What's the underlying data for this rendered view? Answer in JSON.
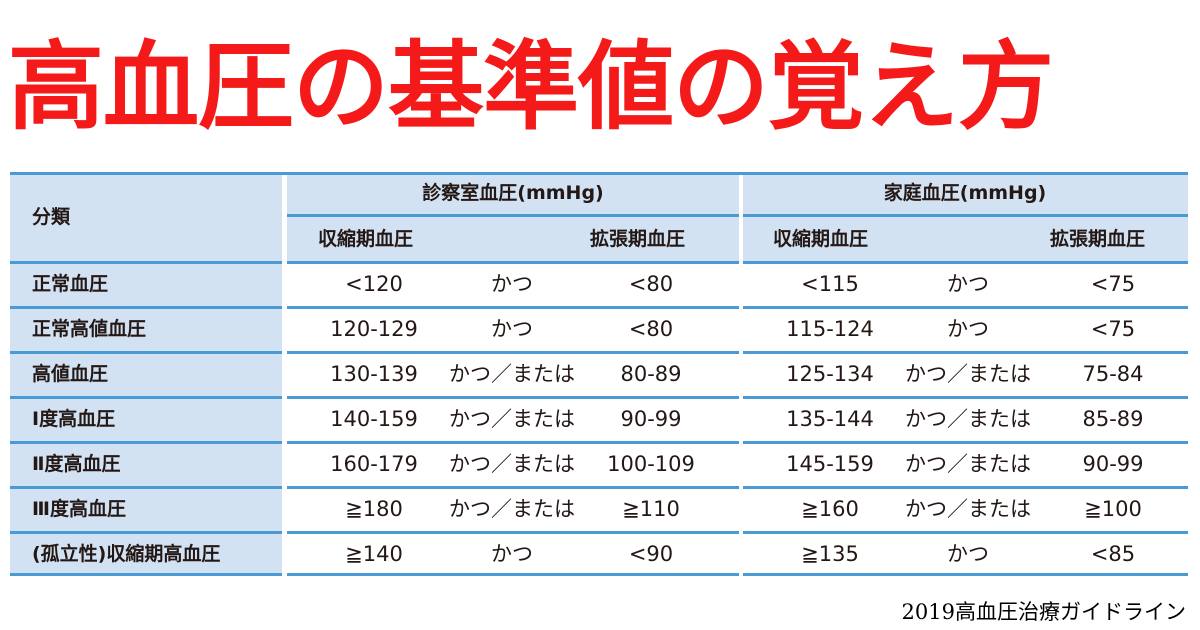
{
  "title": "高血圧の基準値の覚え方",
  "table": {
    "category_header": "分類",
    "clinic_header": "診察室血圧(mmHg)",
    "home_header": "家庭血圧(mmHg)",
    "systolic_label": "収縮期血圧",
    "diastolic_label": "拡張期血圧",
    "rows": [
      {
        "category": "正常血圧",
        "clinic_sys": "<120",
        "clinic_conj": "かつ",
        "clinic_dia": "<80",
        "home_sys": "<115",
        "home_conj": "かつ",
        "home_dia": "<75"
      },
      {
        "category": "正常高値血圧",
        "clinic_sys": "120-129",
        "clinic_conj": "かつ",
        "clinic_dia": "<80",
        "home_sys": "115-124",
        "home_conj": "かつ",
        "home_dia": "<75"
      },
      {
        "category": "高値血圧",
        "clinic_sys": "130-139",
        "clinic_conj": "かつ／または",
        "clinic_dia": "80-89",
        "home_sys": "125-134",
        "home_conj": "かつ／または",
        "home_dia": "75-84"
      },
      {
        "category": "Ⅰ度高血圧",
        "clinic_sys": "140-159",
        "clinic_conj": "かつ／または",
        "clinic_dia": "90-99",
        "home_sys": "135-144",
        "home_conj": "かつ／または",
        "home_dia": "85-89"
      },
      {
        "category": "Ⅱ度高血圧",
        "clinic_sys": "160-179",
        "clinic_conj": "かつ／または",
        "clinic_dia": "100-109",
        "home_sys": "145-159",
        "home_conj": "かつ／または",
        "home_dia": "90-99"
      },
      {
        "category": "Ⅲ度高血圧",
        "clinic_sys": "≧180",
        "clinic_conj": "かつ／または",
        "clinic_dia": "≧110",
        "home_sys": "≧160",
        "home_conj": "かつ／または",
        "home_dia": "≧100"
      },
      {
        "category": "(孤立性)収縮期高血圧",
        "clinic_sys": "≧140",
        "clinic_conj": "かつ",
        "clinic_dia": "<90",
        "home_sys": "≧135",
        "home_conj": "かつ",
        "home_dia": "<85"
      }
    ]
  },
  "footer": "2019高血圧治療ガイドライン",
  "colors": {
    "title": "#f51a1a",
    "header_bg": "#d3e2f2",
    "rule": "#4a9ad6"
  }
}
